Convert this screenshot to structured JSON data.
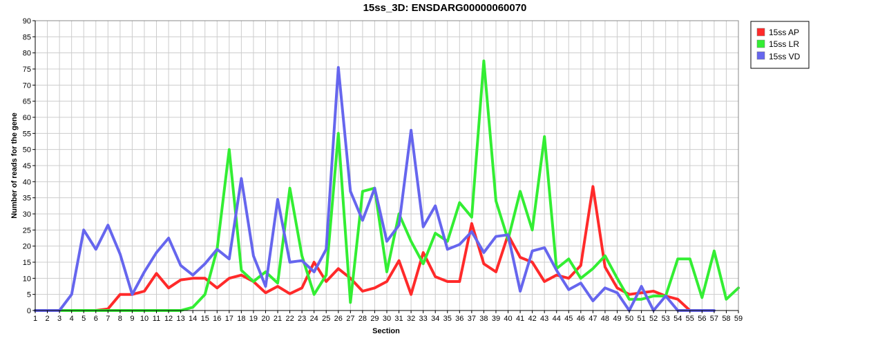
{
  "chart_data": {
    "type": "line",
    "title": "15ss_3D: ENSDARG00000060070",
    "xlabel": "Section",
    "ylabel": "Number of reads for the gene",
    "x": [
      1,
      2,
      3,
      4,
      5,
      6,
      7,
      8,
      9,
      10,
      11,
      12,
      13,
      14,
      15,
      16,
      17,
      18,
      19,
      20,
      21,
      22,
      23,
      24,
      25,
      26,
      27,
      28,
      29,
      30,
      31,
      32,
      33,
      34,
      35,
      36,
      37,
      38,
      39,
      40,
      41,
      42,
      43,
      44,
      45,
      46,
      47,
      48,
      49,
      50,
      51,
      52,
      53,
      54,
      55,
      56,
      57,
      58,
      59
    ],
    "xlim": [
      1,
      59
    ],
    "ylim": [
      0,
      90
    ],
    "yticks": [
      0,
      5,
      10,
      15,
      20,
      25,
      30,
      35,
      40,
      45,
      50,
      55,
      60,
      65,
      70,
      75,
      80,
      85,
      90
    ],
    "grid": true,
    "legend_position": "top-right",
    "series": [
      {
        "name": "15ss AP",
        "color": "#ff2a2a",
        "values": [
          0,
          0,
          0,
          0,
          0,
          0,
          0.5,
          5,
          5,
          6,
          11.5,
          7,
          9.5,
          10,
          10,
          7,
          10,
          11,
          9,
          5.5,
          7.5,
          5.2,
          7,
          15,
          9,
          13,
          10,
          6,
          7,
          9,
          15.5,
          5,
          18,
          10.5,
          9,
          9,
          27,
          14.5,
          12,
          23.5,
          16.5,
          15,
          9,
          11,
          10,
          14,
          38.5,
          13.5,
          7,
          5,
          5.5,
          6,
          4.5,
          3.5,
          0,
          null,
          null,
          null,
          null
        ]
      },
      {
        "name": "15ss LR",
        "color": "#33ee33",
        "values": [
          0,
          0,
          0,
          0,
          0,
          0,
          0,
          0,
          0,
          0,
          0,
          0,
          0,
          1,
          5,
          19,
          50,
          12.5,
          9,
          12,
          8.5,
          38,
          17,
          5,
          11,
          55,
          2.5,
          37,
          38,
          12,
          30,
          21.5,
          14.5,
          24,
          21.5,
          33.5,
          29,
          77.5,
          34,
          22,
          37,
          25,
          54,
          13,
          16,
          10,
          13,
          17,
          10,
          3.5,
          3.5,
          4.5,
          4.5,
          16,
          16,
          4,
          18.5,
          3.5,
          7
        ]
      },
      {
        "name": "15ss VD",
        "color": "#6666ee",
        "values": [
          0,
          0,
          0,
          5,
          25,
          19,
          26.5,
          17.5,
          5,
          12,
          18,
          22.5,
          14,
          11,
          14.5,
          19,
          16,
          41,
          17,
          7.5,
          34.5,
          15,
          15.5,
          12,
          19,
          75.5,
          37,
          28,
          38,
          21.5,
          26.5,
          56,
          26,
          32.5,
          19,
          20.5,
          24.5,
          18,
          23,
          23.5,
          6,
          18.5,
          19.5,
          12.5,
          6.5,
          8.5,
          3,
          7,
          5.5,
          0,
          7.5,
          0,
          4.5,
          0,
          0,
          0,
          0,
          null,
          null
        ]
      }
    ]
  }
}
